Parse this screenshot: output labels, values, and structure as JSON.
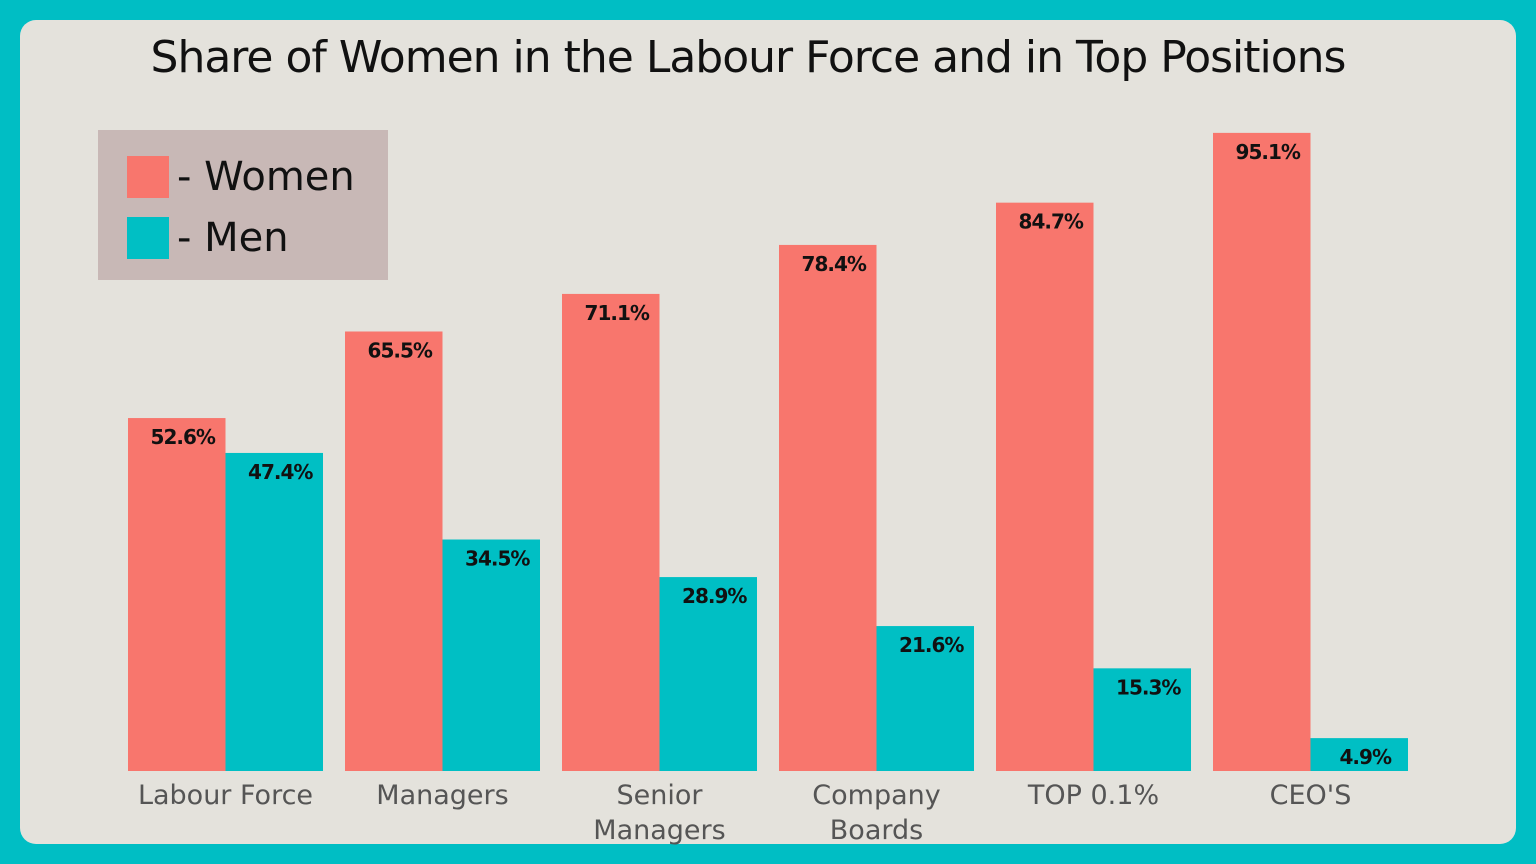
{
  "chart_data": {
    "type": "bar",
    "title": "Share of Women in the Labour Force and in Top Positions",
    "categories": [
      "Labour Force",
      "Managers",
      "Senior Managers",
      "Company Boards",
      "TOP 0.1%",
      "CEO'S"
    ],
    "series": [
      {
        "name": "- Women",
        "color": "#f8766d",
        "values": [
          52.6,
          65.5,
          71.1,
          78.4,
          84.7,
          95.1
        ]
      },
      {
        "name": "- Men",
        "color": "#00bfc4",
        "values": [
          47.4,
          34.5,
          28.9,
          21.6,
          15.3,
          4.9
        ]
      }
    ],
    "value_labels": {
      "women": [
        "52.6%",
        "65.5%",
        "71.1%",
        "78.4%",
        "84.7%",
        "95.1%"
      ],
      "men": [
        "47.4%",
        "34.5%",
        "28.9%",
        "21.6%",
        "15.3%",
        "4.9%"
      ]
    },
    "ylim": [
      0,
      100
    ],
    "legend_position": "top-left",
    "grid": false
  },
  "colors": {
    "frame": "#00bec4",
    "card": "#e4e2dc",
    "legend_bg": "#c8b8b6"
  }
}
